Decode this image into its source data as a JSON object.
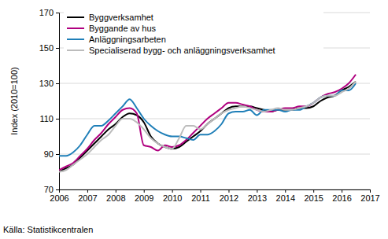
{
  "chart_data": {
    "type": "line",
    "y_label": "Index (2010=100)",
    "source": "Källa: Statistikcentralen",
    "x": [
      2006,
      2006.25,
      2006.5,
      2006.75,
      2007,
      2007.25,
      2007.5,
      2007.75,
      2008,
      2008.25,
      2008.5,
      2008.75,
      2009,
      2009.25,
      2009.5,
      2009.75,
      2010,
      2010.25,
      2010.5,
      2010.75,
      2011,
      2011.25,
      2011.5,
      2011.75,
      2012,
      2012.25,
      2012.5,
      2012.75,
      2013,
      2013.25,
      2013.5,
      2013.75,
      2014,
      2014.25,
      2014.5,
      2014.75,
      2015,
      2015.25,
      2015.5,
      2015.75,
      2016,
      2016.25,
      2016.5
    ],
    "series": [
      {
        "name": "Byggverksamhet",
        "color": "#000000",
        "values": [
          80,
          82,
          84,
          88,
          92,
          96,
          100,
          104,
          107,
          111,
          113,
          112,
          108,
          100,
          96,
          94,
          93,
          94,
          97,
          100,
          103,
          107,
          110,
          113,
          116,
          117,
          117,
          117,
          116,
          115,
          114,
          115,
          115,
          115,
          116,
          116,
          117,
          120,
          122,
          123,
          126,
          128,
          131
        ]
      },
      {
        "name": "Byggande av hus",
        "color": "#b0007f",
        "values": [
          81,
          83,
          85,
          89,
          93,
          98,
          102,
          107,
          111,
          115,
          116,
          113,
          95,
          94,
          92,
          95,
          94,
          95,
          98,
          102,
          106,
          110,
          113,
          116,
          119,
          119,
          118,
          117,
          115,
          114,
          114,
          115,
          116,
          116,
          117,
          117,
          119,
          122,
          124,
          125,
          127,
          130,
          135
        ]
      },
      {
        "name": "Anläggningsarbeten",
        "color": "#1f7fb8",
        "values": [
          89,
          89,
          91,
          95,
          101,
          106,
          106,
          109,
          113,
          117,
          121,
          116,
          110,
          106,
          103,
          101,
          100,
          100,
          99,
          98,
          101,
          101,
          103,
          107,
          113,
          114,
          114,
          115,
          112,
          115,
          115,
          115,
          114,
          115,
          115,
          117,
          119,
          122,
          123,
          123,
          126,
          126,
          130
        ]
      },
      {
        "name": "Specialiserad bygg- och anläggningsverksamhet",
        "color": "#bcbcbc",
        "values": [
          80,
          81,
          84,
          87,
          90,
          94,
          98,
          101,
          106,
          110,
          110,
          108,
          104,
          99,
          96,
          94,
          93,
          99,
          106,
          106,
          104,
          107,
          110,
          113,
          115,
          116,
          117,
          116,
          115,
          114,
          115,
          116,
          115,
          115,
          116,
          117,
          119,
          122,
          123,
          123,
          125,
          127,
          131
        ]
      }
    ],
    "xlim": [
      2006,
      2017
    ],
    "xticks": [
      2006,
      2007,
      2008,
      2009,
      2010,
      2011,
      2012,
      2013,
      2014,
      2015,
      2016,
      2017
    ],
    "ylim": [
      70,
      170
    ],
    "yticks": [
      70,
      90,
      110,
      130,
      150,
      170
    ],
    "grid": true,
    "legend": "top-left"
  }
}
